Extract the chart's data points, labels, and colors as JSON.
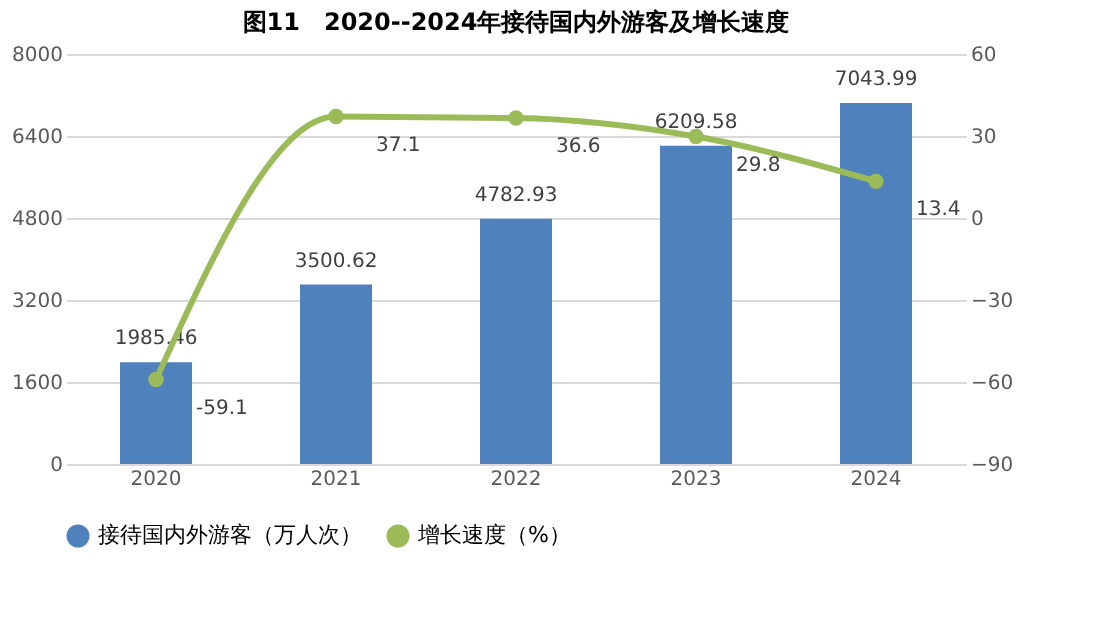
{
  "chart_data": {
    "type": "bar",
    "title": "图11　2020--2024年接待国内外游客及增长速度",
    "categories": [
      "2020",
      "2021",
      "2022",
      "2023",
      "2024"
    ],
    "series": [
      {
        "name": "接待国内外游客（万人次）",
        "color": "#4f81bd",
        "values": [
          1985.46,
          3500.62,
          4782.93,
          6209.58,
          7043.99
        ]
      },
      {
        "name": "增长速度（%）",
        "color": "#9bbb59",
        "type": "line",
        "axis": "y2",
        "values": [
          -59.1,
          37.1,
          36.6,
          29.8,
          13.4
        ]
      }
    ],
    "ylim": [
      0,
      8000
    ],
    "yticks": [
      0,
      1600,
      3200,
      4800,
      6400,
      8000
    ],
    "y2lim": [
      -90,
      60
    ],
    "y2ticks": [
      -90,
      -60,
      -30,
      0,
      30,
      60
    ],
    "grid": "y",
    "legend": "bottom",
    "marker": "circle",
    "line_style": "solid",
    "data_labels": true
  }
}
